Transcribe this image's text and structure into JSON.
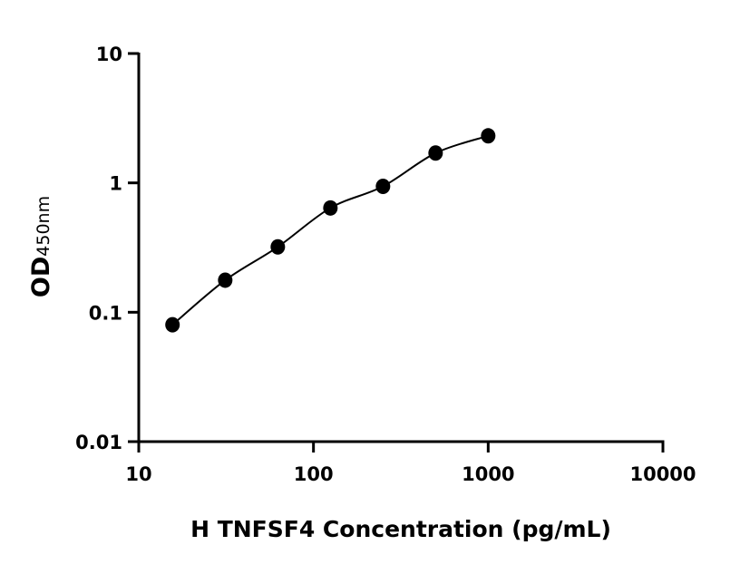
{
  "chart_data": {
    "type": "scatter",
    "title": "",
    "xlabel": "H TNFSF4 Concentration (pg/mL)",
    "ylabel_main": "OD",
    "ylabel_sub": "450nm",
    "x_scale": "log",
    "y_scale": "log",
    "xlim": [
      10,
      10000
    ],
    "ylim": [
      0.01,
      10
    ],
    "x_ticks": [
      10,
      100,
      1000,
      10000
    ],
    "x_tick_labels": [
      "10",
      "100",
      "1000",
      "10000"
    ],
    "y_ticks": [
      0.01,
      0.1,
      1,
      10
    ],
    "y_tick_labels": [
      "0.01",
      "0.1",
      "1",
      "10"
    ],
    "grid": false,
    "legend": "none",
    "series": [
      {
        "x": [
          15.6,
          31.25,
          62.5,
          125,
          250,
          500,
          1000
        ],
        "y": [
          0.08,
          0.177,
          0.32,
          0.64,
          0.94,
          1.7,
          2.31
        ],
        "marker": "circle",
        "fit_curve": true,
        "color": "#000000"
      }
    ]
  }
}
